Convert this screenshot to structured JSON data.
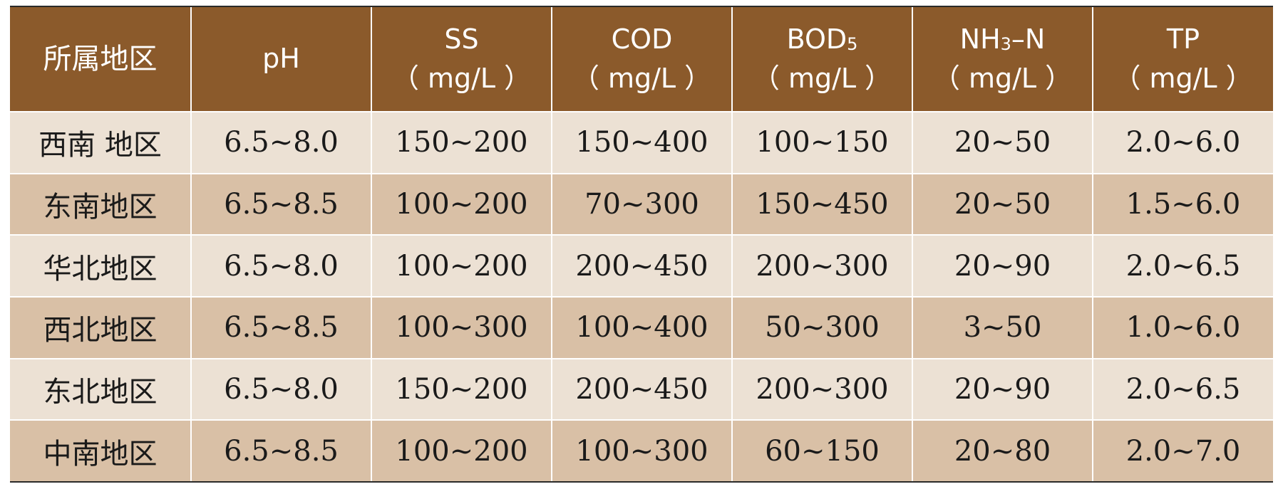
{
  "table": {
    "headers": [
      {
        "name": "所属地区",
        "unit": ""
      },
      {
        "name": "pH",
        "unit": ""
      },
      {
        "name": "SS",
        "unit": "（ mg/L ）"
      },
      {
        "name": "COD",
        "unit": "（ mg/L ）"
      },
      {
        "name": "BOD",
        "sub": "5",
        "unit": "（ mg/L ）"
      },
      {
        "name": "NH",
        "sub": "3",
        "suffix": "–N",
        "unit": "（ mg/L ）"
      },
      {
        "name": "TP",
        "unit": "（ mg/L ）"
      }
    ],
    "rows": [
      [
        "西南 地区",
        "6.5~8.0",
        "150~200",
        "150~400",
        "100~150",
        "20~50",
        "2.0~6.0"
      ],
      [
        "东南地区",
        "6.5~8.5",
        "100~200",
        "70~300",
        "150~450",
        "20~50",
        "1.5~6.0"
      ],
      [
        "华北地区",
        "6.5~8.0",
        "100~200",
        "200~450",
        "200~300",
        "20~90",
        "2.0~6.5"
      ],
      [
        "西北地区",
        "6.5~8.5",
        "100~300",
        "100~400",
        "50~300",
        "3~50",
        "1.0~6.0"
      ],
      [
        "东北地区",
        "6.5~8.0",
        "150~200",
        "200~450",
        "200~300",
        "20~90",
        "2.0~6.5"
      ],
      [
        "中南地区",
        "6.5~8.5",
        "100~200",
        "100~300",
        "60~150",
        "20~80",
        "2.0~7.0"
      ]
    ]
  },
  "colors": {
    "header_bg": "#8b5a2b",
    "row_light": "#ece1d4",
    "row_dark": "#d9c0a6"
  }
}
